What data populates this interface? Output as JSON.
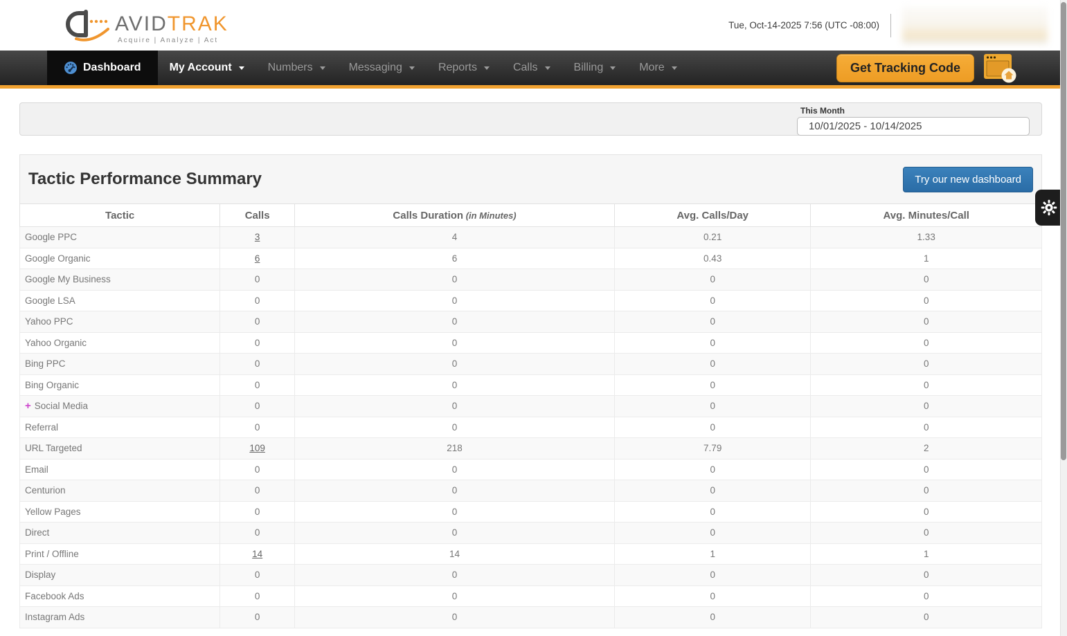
{
  "header": {
    "brand_gray": "AVID",
    "brand_orange": "TRAK",
    "tagline": "Acquire   |   Analyze   |   Act",
    "datetime": "Tue, Oct-14-2025 7:56 (UTC -08:00)"
  },
  "nav": {
    "items": [
      {
        "label": "Dashboard",
        "active": true
      },
      {
        "label": "My Account",
        "emphasis": true
      },
      {
        "label": "Numbers"
      },
      {
        "label": "Messaging"
      },
      {
        "label": "Reports"
      },
      {
        "label": "Calls"
      },
      {
        "label": "Billing"
      },
      {
        "label": "More"
      }
    ],
    "get_tracking_code_label": "Get Tracking Code"
  },
  "filter": {
    "label": "This Month",
    "date_range": "10/01/2025 - 10/14/2025"
  },
  "panel": {
    "title": "Tactic Performance Summary",
    "new_dashboard_button": "Try our new dashboard"
  },
  "table": {
    "expand_symbol": "+",
    "columns": [
      {
        "label": "Tactic"
      },
      {
        "label": "Calls"
      },
      {
        "label": "Calls Duration",
        "suffix": " (in Minutes)"
      },
      {
        "label": "Avg. Calls/Day"
      },
      {
        "label": "Avg. Minutes/Call"
      }
    ],
    "rows": [
      {
        "tactic": "Google PPC",
        "calls": "3",
        "calls_is_link": true,
        "duration": "4",
        "avg_calls_day": "0.21",
        "avg_minutes_call": "1.33"
      },
      {
        "tactic": "Google Organic",
        "calls": "6",
        "calls_is_link": true,
        "duration": "6",
        "avg_calls_day": "0.43",
        "avg_minutes_call": "1"
      },
      {
        "tactic": "Google My Business",
        "calls": "0",
        "duration": "0",
        "avg_calls_day": "0",
        "avg_minutes_call": "0"
      },
      {
        "tactic": "Google LSA",
        "calls": "0",
        "duration": "0",
        "avg_calls_day": "0",
        "avg_minutes_call": "0"
      },
      {
        "tactic": "Yahoo PPC",
        "calls": "0",
        "duration": "0",
        "avg_calls_day": "0",
        "avg_minutes_call": "0"
      },
      {
        "tactic": "Yahoo Organic",
        "calls": "0",
        "duration": "0",
        "avg_calls_day": "0",
        "avg_minutes_call": "0"
      },
      {
        "tactic": "Bing PPC",
        "calls": "0",
        "duration": "0",
        "avg_calls_day": "0",
        "avg_minutes_call": "0"
      },
      {
        "tactic": "Bing Organic",
        "calls": "0",
        "duration": "0",
        "avg_calls_day": "0",
        "avg_minutes_call": "0"
      },
      {
        "tactic": "Social Media",
        "expandable": true,
        "calls": "0",
        "duration": "0",
        "avg_calls_day": "0",
        "avg_minutes_call": "0"
      },
      {
        "tactic": "Referral",
        "calls": "0",
        "duration": "0",
        "avg_calls_day": "0",
        "avg_minutes_call": "0"
      },
      {
        "tactic": "URL Targeted",
        "calls": "109",
        "calls_is_link": true,
        "duration": "218",
        "avg_calls_day": "7.79",
        "avg_minutes_call": "2"
      },
      {
        "tactic": "Email",
        "calls": "0",
        "duration": "0",
        "avg_calls_day": "0",
        "avg_minutes_call": "0"
      },
      {
        "tactic": "Centurion",
        "calls": "0",
        "duration": "0",
        "avg_calls_day": "0",
        "avg_minutes_call": "0"
      },
      {
        "tactic": "Yellow Pages",
        "calls": "0",
        "duration": "0",
        "avg_calls_day": "0",
        "avg_minutes_call": "0"
      },
      {
        "tactic": "Direct",
        "calls": "0",
        "duration": "0",
        "avg_calls_day": "0",
        "avg_minutes_call": "0"
      },
      {
        "tactic": "Print / Offline",
        "calls": "14",
        "calls_is_link": true,
        "duration": "14",
        "avg_calls_day": "1",
        "avg_minutes_call": "1"
      },
      {
        "tactic": "Display",
        "calls": "0",
        "duration": "0",
        "avg_calls_day": "0",
        "avg_minutes_call": "0"
      },
      {
        "tactic": "Facebook Ads",
        "calls": "0",
        "duration": "0",
        "avg_calls_day": "0",
        "avg_minutes_call": "0"
      },
      {
        "tactic": "Instagram Ads",
        "calls": "0",
        "duration": "0",
        "avg_calls_day": "0",
        "avg_minutes_call": "0"
      }
    ]
  },
  "colors": {
    "accent_orange": "#F0A130",
    "brand_orange": "#F0962E",
    "nav_dark": "#2B2B2B",
    "primary_blue": "#2E73AD",
    "link_gray": "#666666",
    "expand_pink": "#CC44CC"
  }
}
